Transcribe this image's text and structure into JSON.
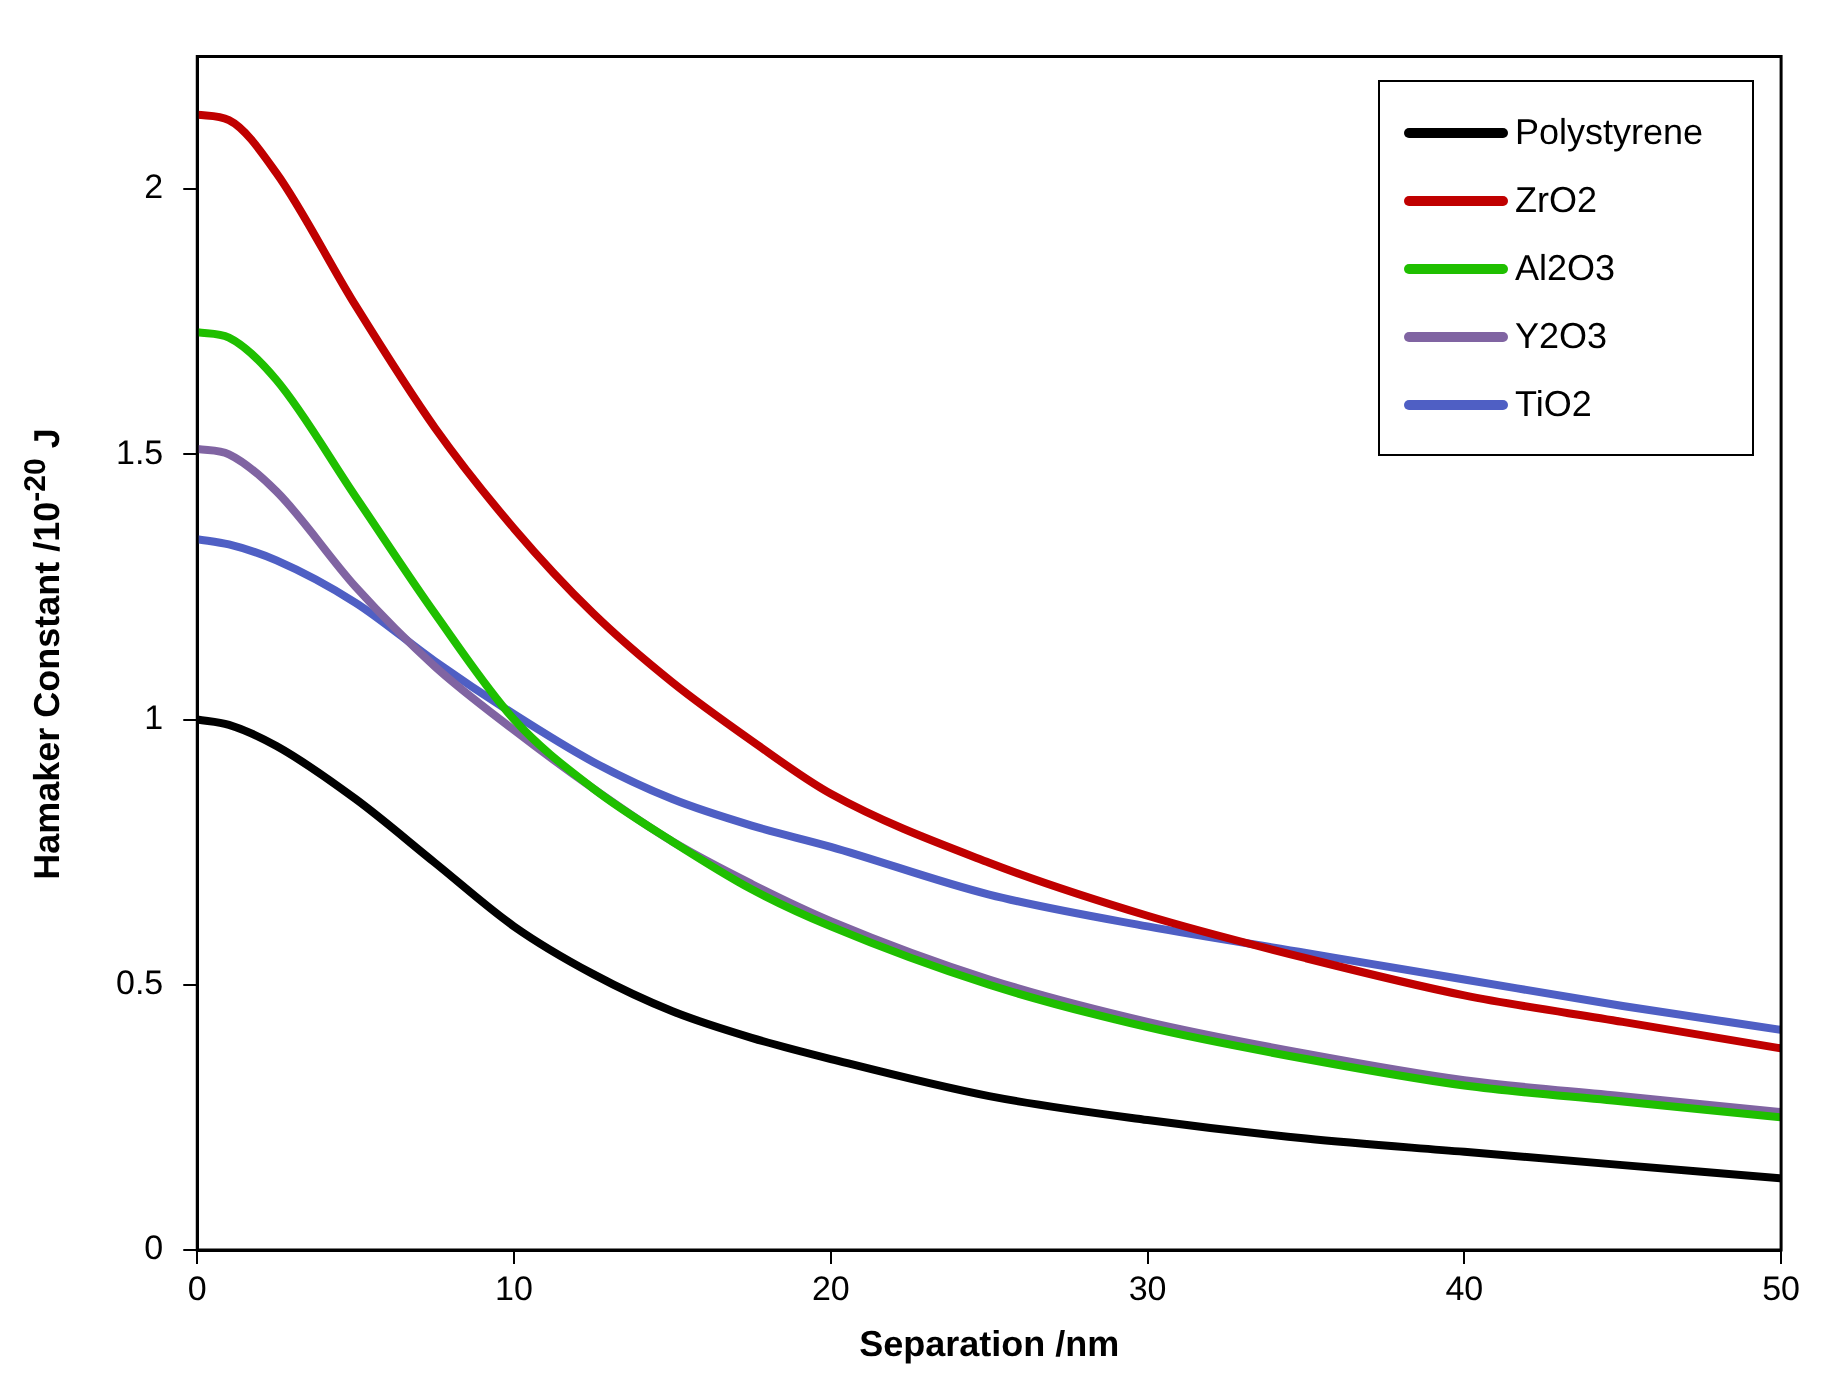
{
  "chart_data": {
    "type": "line",
    "xlabel": "Separation /nm",
    "ylabel": "Hamaker Constant /10$^{-20}$ J",
    "x": [
      0,
      1,
      2.5,
      5,
      7.5,
      10,
      12.5,
      15,
      17.5,
      20,
      25,
      30,
      35,
      40,
      45,
      50
    ],
    "series": [
      {
        "name": "Polystyrene",
        "color": "#000000",
        "values": [
          1.0,
          0.99,
          0.95,
          0.85,
          0.73,
          0.61,
          0.52,
          0.45,
          0.4,
          0.36,
          0.29,
          0.245,
          0.21,
          0.185,
          0.16,
          0.135
        ]
      },
      {
        "name": "ZrO2",
        "color": "#c00000",
        "values": [
          2.14,
          2.13,
          2.03,
          1.78,
          1.55,
          1.36,
          1.2,
          1.07,
          0.96,
          0.86,
          0.73,
          0.63,
          0.55,
          0.48,
          0.43,
          0.38
        ]
      },
      {
        "name": "Al2O3",
        "color": "#1fbf00",
        "values": [
          1.73,
          1.72,
          1.64,
          1.42,
          1.2,
          1.0,
          0.87,
          0.77,
          0.68,
          0.61,
          0.5,
          0.42,
          0.36,
          0.31,
          0.28,
          0.25
        ]
      },
      {
        "name": "Y2O3",
        "color": "#8064a2",
        "values": [
          1.51,
          1.5,
          1.43,
          1.25,
          1.1,
          0.98,
          0.87,
          0.77,
          0.69,
          0.62,
          0.51,
          0.43,
          0.37,
          0.32,
          0.29,
          0.26
        ]
      },
      {
        "name": "TiO2",
        "color": "#4f5fc4",
        "values": [
          1.34,
          1.33,
          1.3,
          1.22,
          1.11,
          1.01,
          0.92,
          0.85,
          0.8,
          0.76,
          0.67,
          0.61,
          0.56,
          0.51,
          0.46,
          0.415
        ]
      }
    ],
    "xlim": [
      0,
      50
    ],
    "xticks": [
      0,
      10,
      20,
      30,
      40,
      50
    ],
    "ylim": [
      0,
      2.25
    ],
    "yticks": [
      0,
      0.5,
      1,
      1.5,
      2
    ],
    "grid": false,
    "legend": "top right",
    "marker": "none",
    "line_style": "solid"
  }
}
